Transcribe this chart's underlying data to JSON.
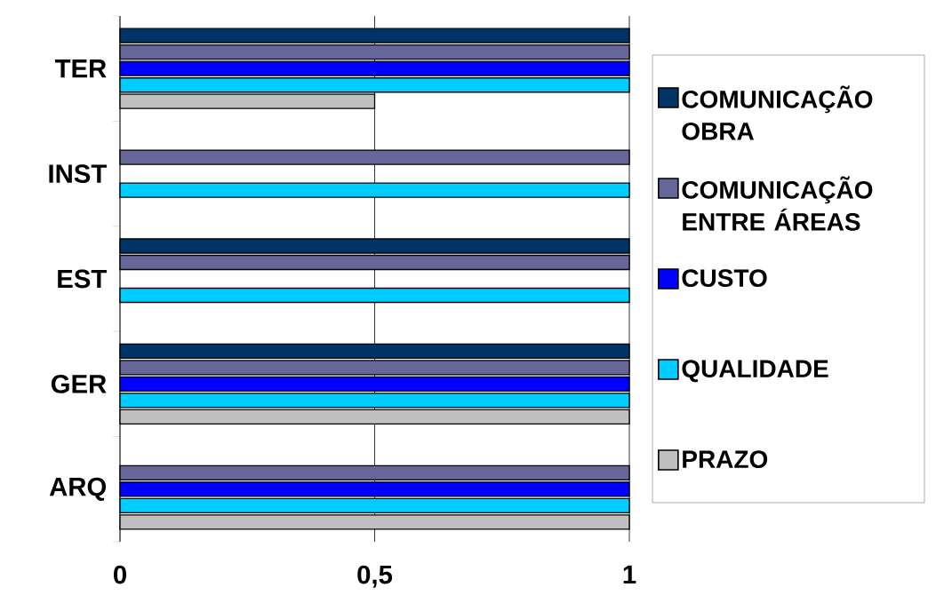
{
  "chart_data": {
    "type": "bar",
    "orientation": "horizontal",
    "categories": [
      "TER",
      "INST",
      "EST",
      "GER",
      "ARQ"
    ],
    "series": [
      {
        "name": "COMUNICAÇÃO OBRA",
        "color": "#003366",
        "values": [
          1,
          null,
          1,
          1,
          null
        ]
      },
      {
        "name": "COMUNICAÇÃO ENTRE ÁREAS",
        "color": "#666699",
        "values": [
          1,
          1,
          1,
          1,
          1
        ]
      },
      {
        "name": "CUSTO",
        "color": "#0000ff",
        "values": [
          1,
          null,
          null,
          1,
          1
        ]
      },
      {
        "name": "QUALIDADE",
        "color": "#00ccff",
        "values": [
          1,
          1,
          1,
          1,
          1
        ]
      },
      {
        "name": "PRAZO",
        "color": "#c0c0c0",
        "values": [
          0.5,
          null,
          null,
          1,
          1
        ]
      }
    ],
    "xlim": [
      0,
      1
    ],
    "xticks": [
      0,
      {
        "value": 0.5,
        "label": "0,5"
      },
      1
    ],
    "grid": "x",
    "legend": "right"
  }
}
